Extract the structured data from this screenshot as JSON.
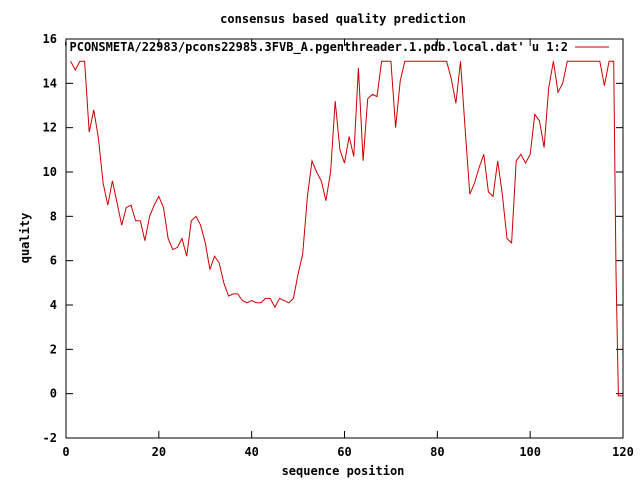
{
  "chart_data": {
    "type": "line",
    "title": "consensus based quality prediction",
    "xlabel": "sequence position",
    "ylabel": "quality",
    "xlim": [
      0,
      120
    ],
    "ylim": [
      -2,
      16
    ],
    "xticks": [
      0,
      20,
      40,
      60,
      80,
      100,
      120
    ],
    "yticks": [
      -2,
      0,
      2,
      4,
      6,
      8,
      10,
      12,
      14,
      16
    ],
    "grid": false,
    "legend_position": "top-right",
    "series": [
      {
        "name": "'PCONSMETA/22983/pcons22983.3FVB_A.pgenthreader.1.pdb.local.dat' u 1:2",
        "color": "#cc0000",
        "x": [
          1,
          2,
          3,
          4,
          5,
          6,
          7,
          8,
          9,
          10,
          11,
          12,
          13,
          14,
          15,
          16,
          17,
          18,
          19,
          20,
          21,
          22,
          23,
          24,
          25,
          26,
          27,
          28,
          29,
          30,
          31,
          32,
          33,
          34,
          35,
          36,
          37,
          38,
          39,
          40,
          41,
          42,
          43,
          44,
          45,
          46,
          47,
          48,
          49,
          50,
          51,
          52,
          53,
          54,
          55,
          56,
          57,
          58,
          59,
          60,
          61,
          62,
          63,
          64,
          65,
          66,
          67,
          68,
          69,
          70,
          71,
          72,
          73,
          74,
          75,
          76,
          77,
          78,
          79,
          80,
          81,
          82,
          83,
          84,
          85,
          86,
          87,
          88,
          89,
          90,
          91,
          92,
          93,
          94,
          95,
          96,
          97,
          98,
          99,
          100,
          101,
          102,
          103,
          104,
          105,
          106,
          107,
          108,
          109,
          110,
          111,
          112,
          113,
          114,
          115,
          116,
          117,
          118,
          118.5,
          119,
          120
        ],
        "y": [
          15.0,
          14.6,
          15.0,
          15.0,
          11.8,
          12.8,
          11.5,
          9.5,
          8.5,
          9.6,
          8.6,
          7.6,
          8.4,
          8.5,
          7.8,
          7.8,
          6.9,
          8.0,
          8.5,
          8.9,
          8.4,
          7.0,
          6.5,
          6.6,
          7.0,
          6.2,
          7.8,
          8.0,
          7.6,
          6.8,
          5.6,
          6.2,
          5.9,
          5.0,
          4.4,
          4.5,
          4.5,
          4.2,
          4.1,
          4.2,
          4.1,
          4.1,
          4.3,
          4.3,
          3.9,
          4.3,
          4.2,
          4.1,
          4.3,
          5.4,
          6.3,
          8.9,
          10.5,
          10.0,
          9.6,
          8.7,
          10.0,
          13.2,
          11.0,
          10.4,
          11.6,
          10.7,
          14.7,
          10.5,
          13.3,
          13.5,
          13.4,
          15.0,
          15.0,
          15.0,
          12.0,
          14.1,
          15.0,
          15.0,
          15.0,
          15.0,
          15.0,
          15.0,
          15.0,
          15.0,
          15.0,
          15.0,
          14.2,
          13.1,
          15.0,
          11.9,
          9.0,
          9.5,
          10.2,
          10.8,
          9.1,
          8.9,
          10.5,
          9.0,
          7.0,
          6.8,
          10.5,
          10.8,
          10.4,
          10.8,
          12.6,
          12.3,
          11.1,
          13.8,
          15.0,
          13.6,
          14.0,
          15.0,
          15.0,
          15.0,
          15.0,
          15.0,
          15.0,
          15.0,
          15.0,
          13.9,
          15.0,
          15.0,
          5.5,
          -0.1,
          -0.1
        ]
      }
    ]
  }
}
